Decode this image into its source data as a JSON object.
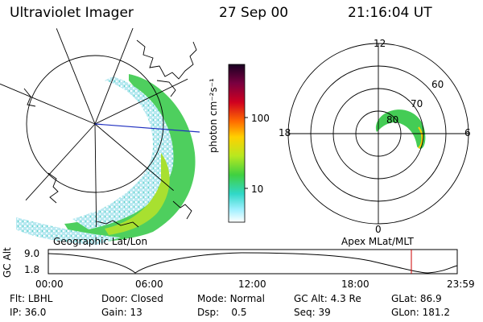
{
  "header": {
    "instrument": "Ultraviolet Imager",
    "date": "27 Sep 00",
    "time": "21:16:04 UT"
  },
  "geo_panel": {
    "caption": "Geographic Lat/Lon"
  },
  "apex_panel": {
    "caption": "Apex MLat/MLT",
    "mlt_labels": {
      "top": "12",
      "left": "18",
      "right": "6",
      "bottom": "0"
    },
    "lat_labels": [
      "60",
      "70",
      "80"
    ]
  },
  "colorbar": {
    "unit": "photon cm⁻²s⁻¹",
    "ticks": [
      "100",
      "10"
    ],
    "colors": [
      "#1a0022",
      "#7a0040",
      "#d00020",
      "#ff6a00",
      "#ffd000",
      "#b8e820",
      "#40d040",
      "#30d8c8",
      "#a0f0ff",
      "#ffffff"
    ]
  },
  "altitude_plot": {
    "ylabel": "GC Alt",
    "yticks": [
      "9.0",
      "1.8"
    ],
    "xticks": [
      "00:00",
      "06:00",
      "12:00",
      "18:00",
      "23:59"
    ],
    "current_time_color": "#cc0000"
  },
  "footer": {
    "row1": [
      {
        "label": "Flt:",
        "value": "LBHL"
      },
      {
        "label": "Door:",
        "value": "Closed"
      },
      {
        "label": "Mode:",
        "value": "Normal"
      },
      {
        "label": "GC Alt:",
        "value": "4.3 Re"
      },
      {
        "label": "GLat:",
        "value": "86.9"
      }
    ],
    "row2": [
      {
        "label": "IP:",
        "value": "36.0"
      },
      {
        "label": "Gain:",
        "value": "13"
      },
      {
        "label": "Dsp:",
        "value": "0.5"
      },
      {
        "label": "Seq:",
        "value": "39"
      },
      {
        "label": "GLon:",
        "value": "181.2"
      }
    ]
  }
}
